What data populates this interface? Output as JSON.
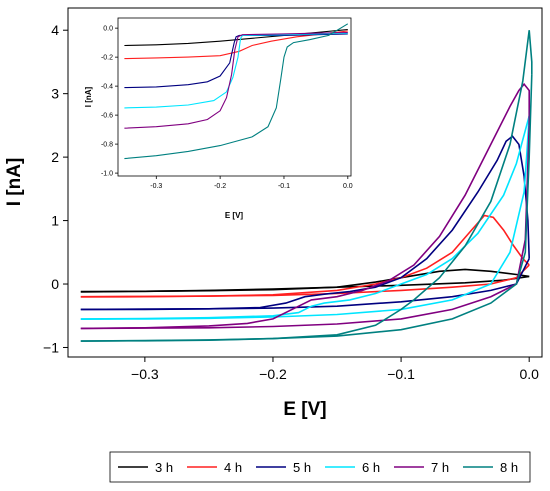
{
  "chart_data": [
    {
      "type": "line",
      "xlabel": "E [V]",
      "ylabel": "I [nA]",
      "xlim": [
        -0.36,
        0.01
      ],
      "ylim": [
        -1.15,
        4.35
      ],
      "xticks": [
        -0.3,
        -0.2,
        -0.1,
        0.0
      ],
      "xtick_labels": [
        "−0.3",
        "−0.2",
        "−0.1",
        "0.0"
      ],
      "yticks": [
        -1,
        0,
        1,
        2,
        3,
        4
      ],
      "ytick_labels": [
        "−1",
        "0",
        "1",
        "2",
        "3",
        "4"
      ],
      "grid": false,
      "legend": {
        "position": "bottom",
        "entries": [
          "3 h",
          "4 h",
          "5 h",
          "6 h",
          "7 h",
          "8 h"
        ]
      },
      "series": [
        {
          "name": "3 h",
          "color": "#000000",
          "forward": [
            [
              -0.35,
              -0.12
            ],
            [
              -0.3,
              -0.115
            ],
            [
              -0.25,
              -0.105
            ],
            [
              -0.2,
              -0.09
            ],
            [
              -0.15,
              -0.05
            ],
            [
              -0.12,
              0.03
            ],
            [
              -0.1,
              0.1
            ],
            [
              -0.07,
              0.2
            ],
            [
              -0.05,
              0.23
            ],
            [
              -0.03,
              0.2
            ],
            [
              -0.01,
              0.15
            ],
            [
              0.0,
              0.12
            ]
          ],
          "reverse": [
            [
              0.0,
              0.12
            ],
            [
              -0.02,
              0.06
            ],
            [
              -0.05,
              0.02
            ],
            [
              -0.1,
              -0.02
            ],
            [
              -0.15,
              -0.05
            ],
            [
              -0.2,
              -0.08
            ],
            [
              -0.25,
              -0.1
            ],
            [
              -0.3,
              -0.115
            ],
            [
              -0.35,
              -0.125
            ]
          ]
        },
        {
          "name": "4 h",
          "color": "#ff2020",
          "forward": [
            [
              -0.35,
              -0.2
            ],
            [
              -0.3,
              -0.195
            ],
            [
              -0.25,
              -0.19
            ],
            [
              -0.2,
              -0.17
            ],
            [
              -0.15,
              -0.1
            ],
            [
              -0.12,
              0.0
            ],
            [
              -0.1,
              0.1
            ],
            [
              -0.08,
              0.25
            ],
            [
              -0.06,
              0.5
            ],
            [
              -0.045,
              0.85
            ],
            [
              -0.035,
              1.08
            ],
            [
              -0.028,
              1.05
            ],
            [
              -0.02,
              0.85
            ],
            [
              -0.012,
              0.6
            ],
            [
              -0.005,
              0.4
            ],
            [
              0.0,
              0.3
            ]
          ],
          "reverse": [
            [
              0.0,
              0.3
            ],
            [
              -0.01,
              0.1
            ],
            [
              -0.03,
              0.0
            ],
            [
              -0.06,
              -0.05
            ],
            [
              -0.1,
              -0.1
            ],
            [
              -0.15,
              -0.15
            ],
            [
              -0.2,
              -0.18
            ],
            [
              -0.25,
              -0.19
            ],
            [
              -0.3,
              -0.2
            ],
            [
              -0.35,
              -0.205
            ]
          ]
        },
        {
          "name": "5 h",
          "color": "#000080",
          "forward": [
            [
              -0.35,
              -0.4
            ],
            [
              -0.3,
              -0.4
            ],
            [
              -0.25,
              -0.39
            ],
            [
              -0.21,
              -0.37
            ],
            [
              -0.19,
              -0.3
            ],
            [
              -0.175,
              -0.2
            ],
            [
              -0.16,
              -0.16
            ],
            [
              -0.14,
              -0.12
            ],
            [
              -0.12,
              -0.05
            ],
            [
              -0.1,
              0.1
            ],
            [
              -0.08,
              0.4
            ],
            [
              -0.06,
              0.85
            ],
            [
              -0.04,
              1.45
            ],
            [
              -0.025,
              1.95
            ],
            [
              -0.018,
              2.25
            ],
            [
              -0.013,
              2.33
            ],
            [
              -0.008,
              2.2
            ],
            [
              -0.004,
              1.7
            ],
            [
              -0.001,
              1.0
            ],
            [
              0.0,
              0.4
            ]
          ],
          "reverse": [
            [
              0.0,
              0.4
            ],
            [
              -0.01,
              0.0
            ],
            [
              -0.03,
              -0.1
            ],
            [
              -0.06,
              -0.2
            ],
            [
              -0.1,
              -0.28
            ],
            [
              -0.15,
              -0.35
            ],
            [
              -0.2,
              -0.38
            ],
            [
              -0.25,
              -0.39
            ],
            [
              -0.3,
              -0.395
            ],
            [
              -0.35,
              -0.4
            ]
          ]
        },
        {
          "name": "6 h",
          "color": "#00e5ff",
          "forward": [
            [
              -0.35,
              -0.55
            ],
            [
              -0.3,
              -0.545
            ],
            [
              -0.25,
              -0.53
            ],
            [
              -0.2,
              -0.5
            ],
            [
              -0.18,
              -0.45
            ],
            [
              -0.17,
              -0.35
            ],
            [
              -0.16,
              -0.3
            ],
            [
              -0.14,
              -0.25
            ],
            [
              -0.12,
              -0.15
            ],
            [
              -0.1,
              0.0
            ],
            [
              -0.08,
              0.15
            ],
            [
              -0.06,
              0.4
            ],
            [
              -0.04,
              0.8
            ],
            [
              -0.02,
              1.4
            ],
            [
              -0.01,
              1.9
            ],
            [
              0.0,
              2.65
            ]
          ],
          "reverse": [
            [
              0.0,
              2.65
            ],
            [
              -0.002,
              2.0
            ],
            [
              -0.004,
              1.45
            ],
            [
              -0.015,
              0.5
            ],
            [
              -0.03,
              0.0
            ],
            [
              -0.06,
              -0.25
            ],
            [
              -0.1,
              -0.4
            ],
            [
              -0.15,
              -0.48
            ],
            [
              -0.2,
              -0.52
            ],
            [
              -0.25,
              -0.54
            ],
            [
              -0.3,
              -0.55
            ],
            [
              -0.35,
              -0.555
            ]
          ]
        },
        {
          "name": "7 h",
          "color": "#800080",
          "forward": [
            [
              -0.35,
              -0.7
            ],
            [
              -0.3,
              -0.69
            ],
            [
              -0.25,
              -0.66
            ],
            [
              -0.22,
              -0.62
            ],
            [
              -0.2,
              -0.55
            ],
            [
              -0.18,
              -0.35
            ],
            [
              -0.17,
              -0.25
            ],
            [
              -0.15,
              -0.2
            ],
            [
              -0.13,
              -0.1
            ],
            [
              -0.11,
              0.05
            ],
            [
              -0.09,
              0.3
            ],
            [
              -0.07,
              0.75
            ],
            [
              -0.05,
              1.4
            ],
            [
              -0.03,
              2.2
            ],
            [
              -0.015,
              2.8
            ],
            [
              -0.008,
              3.05
            ],
            [
              -0.004,
              3.15
            ],
            [
              0.0,
              3.05
            ],
            [
              0.0,
              2.5
            ]
          ],
          "reverse": [
            [
              0.0,
              2.5
            ],
            [
              -0.003,
              0.7
            ],
            [
              -0.01,
              0.0
            ],
            [
              -0.03,
              -0.2
            ],
            [
              -0.06,
              -0.4
            ],
            [
              -0.1,
              -0.55
            ],
            [
              -0.15,
              -0.63
            ],
            [
              -0.2,
              -0.67
            ],
            [
              -0.25,
              -0.69
            ],
            [
              -0.3,
              -0.695
            ],
            [
              -0.35,
              -0.7
            ]
          ]
        },
        {
          "name": "8 h",
          "color": "#008080",
          "forward": [
            [
              -0.35,
              -0.9
            ],
            [
              -0.3,
              -0.895
            ],
            [
              -0.25,
              -0.885
            ],
            [
              -0.2,
              -0.86
            ],
            [
              -0.15,
              -0.8
            ],
            [
              -0.12,
              -0.65
            ],
            [
              -0.1,
              -0.4
            ],
            [
              -0.09,
              -0.25
            ],
            [
              -0.07,
              0.1
            ],
            [
              -0.05,
              0.6
            ],
            [
              -0.03,
              1.3
            ],
            [
              -0.015,
              2.2
            ],
            [
              -0.005,
              3.2
            ],
            [
              0.0,
              4.0
            ],
            [
              0.002,
              3.5
            ],
            [
              0.002,
              3.3
            ]
          ],
          "reverse": [
            [
              0.002,
              3.3
            ],
            [
              0.0,
              2.0
            ],
            [
              -0.003,
              0.5
            ],
            [
              -0.01,
              0.0
            ],
            [
              -0.03,
              -0.3
            ],
            [
              -0.06,
              -0.55
            ],
            [
              -0.1,
              -0.72
            ],
            [
              -0.15,
              -0.82
            ],
            [
              -0.2,
              -0.86
            ],
            [
              -0.25,
              -0.88
            ],
            [
              -0.3,
              -0.89
            ],
            [
              -0.35,
              -0.9
            ]
          ]
        }
      ]
    },
    {
      "type": "line",
      "panel": "inset",
      "xlabel": "E [V]",
      "ylabel": "I [nA]",
      "xlim": [
        -0.36,
        0.005
      ],
      "ylim": [
        -1.02,
        0.07
      ],
      "xticks": [
        -0.3,
        -0.2,
        -0.1,
        0.0
      ],
      "xtick_labels": [
        "-0.3",
        "-0.2",
        "-0.1",
        "0.0"
      ],
      "yticks": [
        0.0,
        -0.2,
        -0.4,
        -0.6,
        -0.8,
        -1.0
      ],
      "ytick_labels": [
        "0.0",
        "-0.2",
        "-0.4",
        "-0.6",
        "-0.8",
        "-1.0"
      ],
      "grid": false,
      "series": [
        {
          "name": "3 h",
          "color": "#000000",
          "points": [
            [
              -0.35,
              -0.12
            ],
            [
              -0.3,
              -0.115
            ],
            [
              -0.25,
              -0.105
            ],
            [
              -0.2,
              -0.09
            ],
            [
              -0.15,
              -0.07
            ],
            [
              -0.1,
              -0.05
            ],
            [
              -0.05,
              -0.03
            ],
            [
              0.0,
              -0.01
            ]
          ]
        },
        {
          "name": "4 h",
          "color": "#ff2020",
          "points": [
            [
              -0.35,
              -0.21
            ],
            [
              -0.3,
              -0.205
            ],
            [
              -0.25,
              -0.2
            ],
            [
              -0.2,
              -0.19
            ],
            [
              -0.17,
              -0.16
            ],
            [
              -0.15,
              -0.12
            ],
            [
              -0.12,
              -0.09
            ],
            [
              -0.08,
              -0.06
            ],
            [
              -0.04,
              -0.04
            ],
            [
              0.0,
              -0.02
            ]
          ]
        },
        {
          "name": "5 h",
          "color": "#000080",
          "points": [
            [
              -0.35,
              -0.41
            ],
            [
              -0.3,
              -0.405
            ],
            [
              -0.25,
              -0.39
            ],
            [
              -0.22,
              -0.37
            ],
            [
              -0.2,
              -0.33
            ],
            [
              -0.185,
              -0.24
            ],
            [
              -0.178,
              -0.1
            ],
            [
              -0.175,
              -0.06
            ],
            [
              -0.17,
              -0.05
            ],
            [
              -0.1,
              -0.05
            ],
            [
              -0.05,
              -0.045
            ],
            [
              0.0,
              -0.04
            ]
          ]
        },
        {
          "name": "6 h",
          "color": "#00e5ff",
          "points": [
            [
              -0.35,
              -0.55
            ],
            [
              -0.3,
              -0.545
            ],
            [
              -0.25,
              -0.53
            ],
            [
              -0.21,
              -0.5
            ],
            [
              -0.19,
              -0.44
            ],
            [
              -0.18,
              -0.34
            ],
            [
              -0.172,
              -0.2
            ],
            [
              -0.168,
              -0.07
            ],
            [
              -0.165,
              -0.05
            ],
            [
              -0.1,
              -0.045
            ],
            [
              -0.05,
              -0.04
            ],
            [
              0.0,
              -0.035
            ]
          ]
        },
        {
          "name": "7 h",
          "color": "#800080",
          "points": [
            [
              -0.35,
              -0.69
            ],
            [
              -0.3,
              -0.68
            ],
            [
              -0.25,
              -0.66
            ],
            [
              -0.22,
              -0.63
            ],
            [
              -0.2,
              -0.57
            ],
            [
              -0.19,
              -0.48
            ],
            [
              -0.182,
              -0.32
            ],
            [
              -0.177,
              -0.15
            ],
            [
              -0.172,
              -0.06
            ],
            [
              -0.165,
              -0.045
            ],
            [
              -0.1,
              -0.04
            ],
            [
              -0.05,
              -0.035
            ],
            [
              0.0,
              -0.03
            ]
          ]
        },
        {
          "name": "8 h",
          "color": "#008080",
          "points": [
            [
              -0.35,
              -0.9
            ],
            [
              -0.3,
              -0.88
            ],
            [
              -0.25,
              -0.85
            ],
            [
              -0.2,
              -0.81
            ],
            [
              -0.15,
              -0.75
            ],
            [
              -0.125,
              -0.68
            ],
            [
              -0.112,
              -0.55
            ],
            [
              -0.105,
              -0.35
            ],
            [
              -0.1,
              -0.2
            ],
            [
              -0.095,
              -0.13
            ],
            [
              -0.085,
              -0.1
            ],
            [
              -0.06,
              -0.08
            ],
            [
              -0.03,
              -0.05
            ],
            [
              0.0,
              0.03
            ]
          ]
        }
      ]
    }
  ]
}
